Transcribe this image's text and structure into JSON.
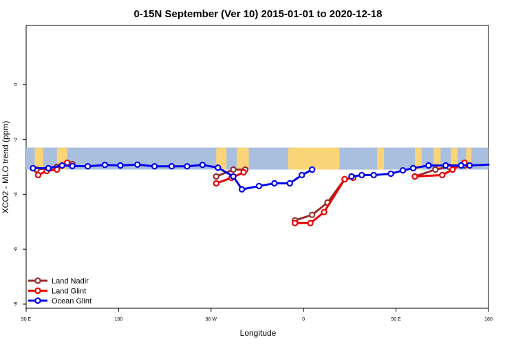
{
  "chart_data": {
    "type": "line",
    "title": "0-15N September (Ver 10)   2015-01-01 to 2020-12-18",
    "xlabel": "Longitude",
    "ylabel": "XCO2 - MLO trend (ppm)",
    "xlim": [
      -90,
      180
    ],
    "ylim": [
      -8,
      2
    ],
    "x_ticks": [
      {
        "value": -90,
        "label": "90 E"
      },
      {
        "value": -36,
        "label": "180"
      },
      {
        "value": 18,
        "label": "90 W"
      },
      {
        "value": 72,
        "label": "0"
      },
      {
        "value": 126,
        "label": "90 E"
      },
      {
        "value": 180,
        "label": "180"
      }
    ],
    "y_ticks": [
      {
        "value": 0,
        "label": "0"
      },
      {
        "value": -2,
        "label": "-2"
      },
      {
        "value": -4,
        "label": "-4"
      },
      {
        "value": -6,
        "label": "-6"
      },
      {
        "value": -8,
        "label": "-8"
      }
    ],
    "grid": false,
    "legend_position": "bottom-left",
    "map_band": {
      "y_top": -2.3,
      "y_bottom": -3.1,
      "ocean_color": "#a9bfdf",
      "land_color": "#fcd478"
    },
    "series": [
      {
        "name": "Land Nadir",
        "color": "#992d2d",
        "segments": [
          [
            [
              -84,
              -3.1
            ],
            [
              -72,
              -3.0
            ],
            [
              -69,
              -2.95
            ],
            [
              -63,
              -2.9
            ]
          ],
          [
            [
              21,
              -3.35
            ],
            [
              31,
              -3.1
            ],
            [
              38,
              -3.1
            ]
          ],
          [
            [
              67,
              -4.95
            ],
            [
              77,
              -4.75
            ],
            [
              86,
              -4.3
            ],
            [
              96,
              -3.45
            ]
          ],
          [
            [
              137,
              -3.35
            ],
            [
              149,
              -3.1
            ],
            [
              157,
              -3.0
            ],
            [
              166,
              -2.95
            ]
          ]
        ]
      },
      {
        "name": "Land Glint",
        "color": "#ef0000",
        "segments": [
          [
            [
              -83,
              -3.3
            ],
            [
              -78,
              -3.15
            ],
            [
              -72,
              -3.1
            ],
            [
              -66,
              -2.85
            ]
          ],
          [
            [
              21,
              -3.6
            ],
            [
              30,
              -3.4
            ],
            [
              37,
              -3.2
            ]
          ],
          [
            [
              67,
              -5.05
            ],
            [
              76,
              -5.05
            ],
            [
              84,
              -4.65
            ],
            [
              96,
              -3.45
            ],
            [
              101,
              -3.4
            ]
          ],
          [
            [
              137,
              -3.35
            ],
            [
              153,
              -3.3
            ],
            [
              159,
              -3.1
            ],
            [
              166,
              -2.85
            ]
          ]
        ]
      },
      {
        "name": "Ocean Glint",
        "color": "#0000ee",
        "segments": [
          [
            [
              -86,
              -3.05
            ],
            [
              -77,
              -3.05
            ],
            [
              -69,
              -2.95
            ],
            [
              -63,
              -2.97
            ],
            [
              -54,
              -2.98
            ],
            [
              -44,
              -2.93
            ],
            [
              -35,
              -2.95
            ],
            [
              -25,
              -2.92
            ],
            [
              -15,
              -2.98
            ],
            [
              -5,
              -2.98
            ],
            [
              4,
              -2.98
            ],
            [
              13,
              -2.93
            ],
            [
              22,
              -3.03
            ],
            [
              31,
              -3.35
            ],
            [
              36,
              -3.82
            ],
            [
              46,
              -3.7
            ],
            [
              55,
              -3.6
            ],
            [
              64,
              -3.6
            ],
            [
              71,
              -3.3
            ],
            [
              77,
              -3.1
            ]
          ],
          [
            [
              100,
              -3.35
            ],
            [
              106,
              -3.3
            ],
            [
              113,
              -3.3
            ],
            [
              123,
              -3.25
            ],
            [
              130,
              -3.13
            ],
            [
              136,
              -3.05
            ],
            [
              145,
              -2.95
            ],
            [
              155,
              -2.95
            ],
            [
              164,
              -2.95
            ],
            [
              169,
              -2.95
            ],
            [
              180,
              -2.92
            ],
            [
              185,
              -2.95
            ]
          ]
        ]
      }
    ]
  }
}
